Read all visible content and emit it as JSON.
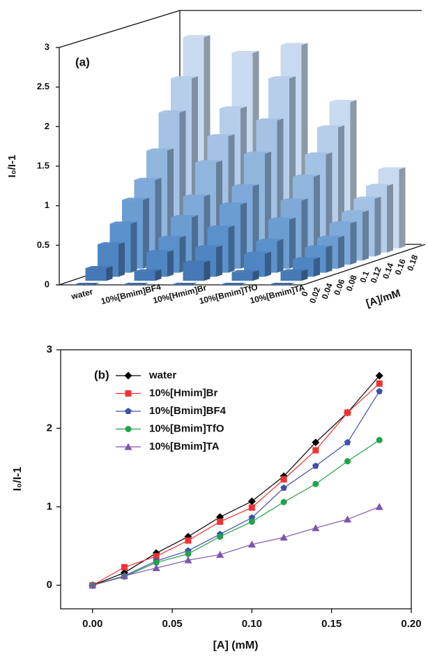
{
  "chart_data": [
    {
      "type": "bar3d",
      "annotation": "(a)",
      "zlabel": "I₀/I-1",
      "depth_label": "[A]/mM",
      "depth": [
        0,
        0.02,
        0.04,
        0.06,
        0.08,
        0.1,
        0.12,
        0.14,
        0.16,
        0.18
      ],
      "depth_colors": [
        "#3f6fa6",
        "#4679b5",
        "#4f85c2",
        "#5b91cb",
        "#6b9dd2",
        "#7ea9d8",
        "#91b6de",
        "#a4c2e4",
        "#b6cee9",
        "#c8daef"
      ],
      "zlim": [
        0,
        3
      ],
      "zticks": [
        0,
        0.5,
        1,
        1.5,
        2,
        2.5,
        3
      ],
      "series": [
        {
          "name": "water",
          "values": [
            0,
            0.16,
            0.41,
            0.62,
            0.87,
            1.07,
            1.39,
            1.82,
            2.2,
            2.67
          ]
        },
        {
          "name": "10%[Bmim]BF4",
          "values": [
            0,
            0.12,
            0.31,
            0.44,
            0.65,
            0.86,
            1.24,
            1.52,
            1.82,
            2.47
          ]
        },
        {
          "name": "10%[Hmim]Br",
          "values": [
            0,
            0.23,
            0.37,
            0.57,
            0.81,
            0.99,
            1.35,
            1.72,
            2.2,
            2.57
          ]
        },
        {
          "name": "10%[Bmim]TfO",
          "values": [
            0,
            0.11,
            0.29,
            0.4,
            0.62,
            0.81,
            1.06,
            1.29,
            1.58,
            1.85
          ]
        },
        {
          "name": "10%[Bmim]TA",
          "values": [
            0,
            0.12,
            0.22,
            0.32,
            0.39,
            0.52,
            0.61,
            0.73,
            0.84,
            1.0
          ]
        }
      ]
    },
    {
      "type": "line",
      "annotation": "(b)",
      "xlabel": "[A] (mM)",
      "ylabel": "I₀/I-1",
      "x": [
        0,
        0.02,
        0.04,
        0.06,
        0.08,
        0.1,
        0.12,
        0.14,
        0.16,
        0.18
      ],
      "xlim": [
        -0.02,
        0.2
      ],
      "xticks": [
        {
          "value": 0,
          "label": "0.00"
        },
        {
          "value": 0.05,
          "label": "0.05"
        },
        {
          "value": 0.1,
          "label": "0.10"
        },
        {
          "value": 0.15,
          "label": "0.15"
        },
        {
          "value": 0.2,
          "label": "0.20"
        }
      ],
      "ylim": [
        -0.3,
        3
      ],
      "yticks": [
        0,
        1,
        2,
        3
      ],
      "series": [
        {
          "name": "water",
          "color": "#000000",
          "marker": "diamond",
          "values": [
            0,
            0.16,
            0.41,
            0.62,
            0.87,
            1.07,
            1.39,
            1.82,
            2.2,
            2.67
          ]
        },
        {
          "name": "10%[Hmim]Br",
          "color": "#ee3333",
          "marker": "square",
          "values": [
            0,
            0.23,
            0.37,
            0.57,
            0.81,
            0.99,
            1.35,
            1.72,
            2.2,
            2.57
          ]
        },
        {
          "name": "10%[Bmim]BF4",
          "color": "#3f4fae",
          "marker": "pentagon",
          "values": [
            0,
            0.12,
            0.31,
            0.44,
            0.65,
            0.86,
            1.24,
            1.52,
            1.82,
            2.47
          ]
        },
        {
          "name": "10%[Bmim]TfO",
          "color": "#22a24a",
          "marker": "circle",
          "values": [
            0,
            0.11,
            0.29,
            0.4,
            0.62,
            0.81,
            1.06,
            1.29,
            1.58,
            1.85
          ]
        },
        {
          "name": "10%[Bmim]TA",
          "color": "#7b55b0",
          "marker": "triangle",
          "values": [
            0,
            0.12,
            0.22,
            0.32,
            0.39,
            0.52,
            0.61,
            0.73,
            0.84,
            1.0
          ]
        }
      ]
    }
  ]
}
